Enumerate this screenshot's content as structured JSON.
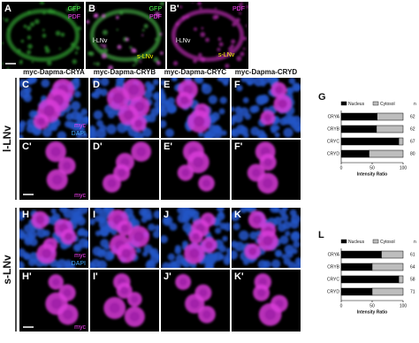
{
  "figure": {
    "panels": [
      {
        "label": "A",
        "texts": [
          "GFP",
          "PDF"
        ]
      },
      {
        "label": "B",
        "texts": [
          "GFP",
          "PDF",
          "l-LNv",
          "s-LNv"
        ]
      },
      {
        "label": "B'",
        "texts": [
          "PDF",
          "l-LNv",
          "s-LNv"
        ]
      },
      {
        "label": "C",
        "texts": [
          "myc",
          "DAPI"
        ]
      },
      {
        "label": "D",
        "texts": []
      },
      {
        "label": "E",
        "texts": []
      },
      {
        "label": "F",
        "texts": []
      },
      {
        "label": "C'",
        "texts": [
          "myc"
        ]
      },
      {
        "label": "D'",
        "texts": []
      },
      {
        "label": "E'",
        "texts": []
      },
      {
        "label": "F'",
        "texts": []
      },
      {
        "label": "H",
        "texts": [
          "myc",
          "DAPI"
        ]
      },
      {
        "label": "I",
        "texts": []
      },
      {
        "label": "J",
        "texts": []
      },
      {
        "label": "K",
        "texts": []
      },
      {
        "label": "H'",
        "texts": [
          "myc"
        ]
      },
      {
        "label": "I'",
        "texts": []
      },
      {
        "label": "J'",
        "texts": []
      },
      {
        "label": "K'",
        "texts": []
      }
    ],
    "column_headers": [
      "myc-Dapma-CRYA",
      "myc-Dapma-CRYB",
      "myc-Dapma-CRYC",
      "myc-Dapma-CRYD"
    ],
    "row_labels": [
      "l-LNv",
      "s-LNv"
    ]
  },
  "chart_data": [
    {
      "type": "stacked-barh",
      "panel_label": "G",
      "categories": [
        "CRYA",
        "CRYB",
        "CRYC",
        "CRYD"
      ],
      "series": [
        {
          "name": "Nucleus",
          "color": "#000000",
          "values": [
            58,
            57,
            93,
            45
          ]
        },
        {
          "name": "Cytosol",
          "color": "#bdbdbd",
          "values": [
            42,
            43,
            7,
            55
          ]
        }
      ],
      "xlim": [
        0,
        100
      ],
      "xticks": [
        0,
        50,
        100
      ],
      "xlabel": "Intensity Ratio",
      "n_header": "n",
      "n_values": [
        62,
        62,
        67,
        80
      ]
    },
    {
      "type": "stacked-barh",
      "panel_label": "L",
      "categories": [
        "CRYA",
        "CRYB",
        "CRYC",
        "CRYD"
      ],
      "series": [
        {
          "name": "Nucleus",
          "color": "#000000",
          "values": [
            65,
            50,
            93,
            50
          ]
        },
        {
          "name": "Cytosol",
          "color": "#bdbdbd",
          "values": [
            35,
            50,
            7,
            50
          ]
        }
      ],
      "xlim": [
        0,
        100
      ],
      "xticks": [
        0,
        50,
        100
      ],
      "xlabel": "Intensity Ratio",
      "n_header": "n",
      "n_values": [
        61,
        64,
        58,
        71
      ]
    }
  ]
}
